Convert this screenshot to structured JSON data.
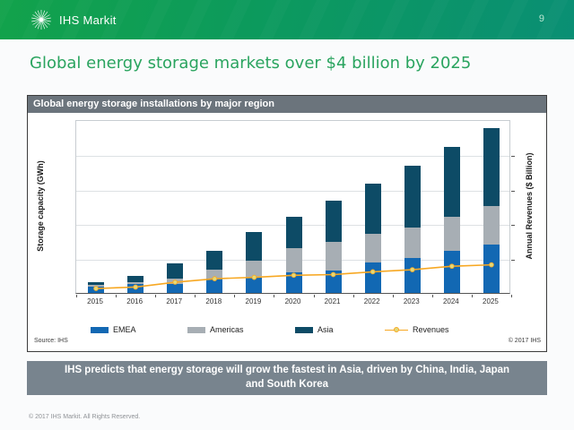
{
  "header": {
    "logo_text": "IHS Markit",
    "page_number": "9"
  },
  "slide": {
    "title": "Global energy storage markets over $4 billion by 2025"
  },
  "chart": {
    "header": "Global energy storage installations by major region",
    "source": "Source: IHS",
    "copyright": "© 2017 IHS"
  },
  "chart_data": {
    "type": "bar",
    "stacked": true,
    "title": "Global energy storage installations by major region",
    "categories": [
      "2015",
      "2016",
      "2017",
      "2018",
      "2019",
      "2020",
      "2021",
      "2022",
      "2023",
      "2024",
      "2025"
    ],
    "series": [
      {
        "name": "EMEA",
        "color": "#1268b3",
        "values": [
          1.8,
          2.5,
          2.6,
          4.2,
          4.5,
          5.9,
          6.4,
          8.8,
          10.1,
          12.0,
          13.8
        ]
      },
      {
        "name": "Americas",
        "color": "#a7aeb4",
        "values": [
          0.4,
          0.6,
          1.6,
          2.5,
          4.7,
          6.9,
          8.2,
          8.2,
          8.6,
          10.0,
          11.2
        ]
      },
      {
        "name": "Asia",
        "color": "#0d4b66",
        "values": [
          1.0,
          1.9,
          4.2,
          5.5,
          8.3,
          9.1,
          11.9,
          14.5,
          17.8,
          19.9,
          22.5
        ]
      }
    ],
    "line_series": {
      "name": "Revenues",
      "axis": "right",
      "color": "#f7a823",
      "marker_fill": "#e2da7a",
      "values": [
        0.9,
        1.1,
        1.8,
        2.3,
        2.5,
        2.8,
        2.9,
        3.3,
        3.6,
        4.1,
        4.3
      ]
    },
    "ylabel_left": "Storage capacity (GWh)",
    "ylabel_right": "Annual Revenues ($ Billion)",
    "ylim_left": [
      0,
      50
    ],
    "ylim_right": [
      0,
      25
    ],
    "grid_step_left": 10,
    "grid": true,
    "legend_position": "bottom",
    "legend_lefts": [
      70,
      178,
      298,
      398
    ]
  },
  "caption": "IHS predicts that energy storage will grow the fastest in Asia, driven by China, India, Japan and South Korea",
  "footer": "© 2017 IHS Markit. All Rights Reserved.",
  "colors": {
    "header_gradient_start": "#12a24b",
    "header_gradient_end": "#0a8f74",
    "title": "#2aa45f",
    "chart_header_bg": "#6b747c",
    "caption_bg": "#78848e"
  }
}
